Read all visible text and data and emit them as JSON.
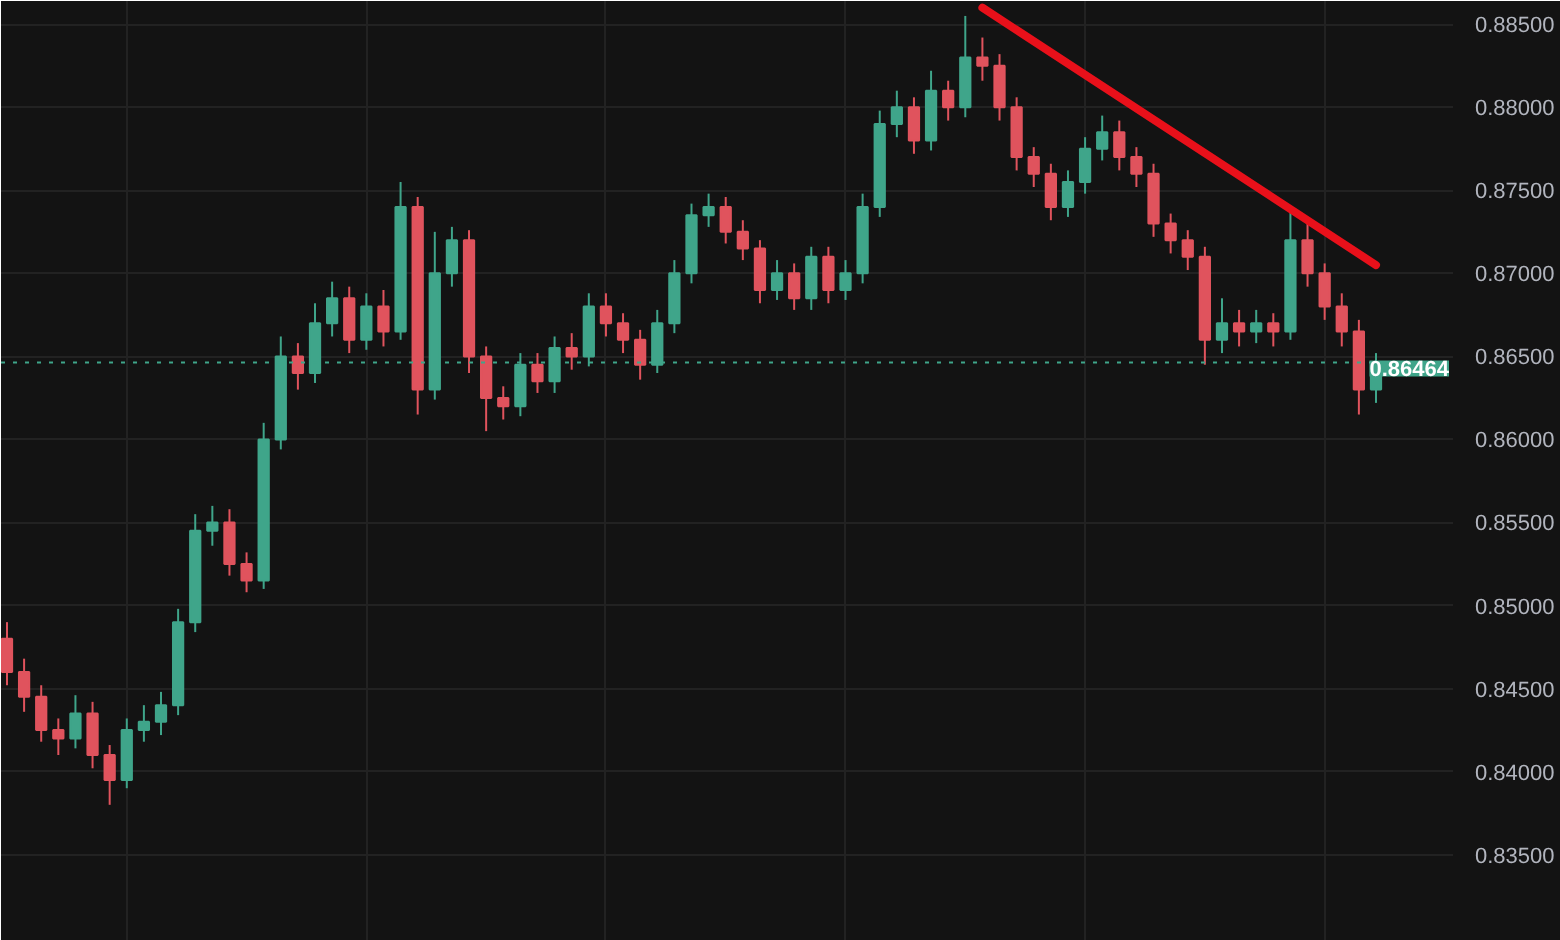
{
  "chart_data": {
    "type": "candlestick",
    "categories": [
      null,
      null,
      null,
      null,
      null,
      null,
      null,
      null,
      null,
      null,
      null,
      null,
      null,
      null,
      null,
      null,
      null,
      null,
      null,
      null,
      null,
      null,
      null,
      null,
      null,
      null,
      null,
      null,
      null,
      null,
      null,
      null,
      null,
      null,
      null,
      null,
      null,
      null,
      null,
      null,
      null,
      null,
      null,
      null,
      null,
      null,
      null,
      null,
      null,
      null,
      null,
      null,
      null,
      null,
      null,
      null,
      null,
      null,
      null,
      null,
      null,
      null,
      null,
      null,
      null,
      null,
      null,
      null,
      null,
      null,
      null,
      null,
      null,
      null,
      null,
      null,
      null,
      null,
      null,
      null,
      null
    ],
    "ohlc": [
      [
        0.848,
        0.849,
        0.8452,
        0.846
      ],
      [
        0.846,
        0.8468,
        0.8436,
        0.8445
      ],
      [
        0.8445,
        0.8452,
        0.8418,
        0.8425
      ],
      [
        0.8425,
        0.8432,
        0.841,
        0.842
      ],
      [
        0.842,
        0.8446,
        0.8414,
        0.8435
      ],
      [
        0.8435,
        0.8442,
        0.8402,
        0.841
      ],
      [
        0.841,
        0.8416,
        0.838,
        0.8395
      ],
      [
        0.8395,
        0.8432,
        0.839,
        0.8425
      ],
      [
        0.8425,
        0.844,
        0.8418,
        0.843
      ],
      [
        0.843,
        0.8448,
        0.8422,
        0.844
      ],
      [
        0.844,
        0.8498,
        0.8434,
        0.849
      ],
      [
        0.849,
        0.8555,
        0.8484,
        0.8545
      ],
      [
        0.8545,
        0.856,
        0.8536,
        0.855
      ],
      [
        0.855,
        0.8558,
        0.8518,
        0.8525
      ],
      [
        0.8525,
        0.8532,
        0.8508,
        0.8515
      ],
      [
        0.8515,
        0.861,
        0.851,
        0.86
      ],
      [
        0.86,
        0.8662,
        0.8594,
        0.865
      ],
      [
        0.865,
        0.8658,
        0.863,
        0.864
      ],
      [
        0.864,
        0.8682,
        0.8634,
        0.867
      ],
      [
        0.867,
        0.8695,
        0.8662,
        0.8685
      ],
      [
        0.8685,
        0.8692,
        0.8652,
        0.866
      ],
      [
        0.866,
        0.8688,
        0.8654,
        0.868
      ],
      [
        0.868,
        0.869,
        0.8656,
        0.8665
      ],
      [
        0.8665,
        0.8755,
        0.866,
        0.874
      ],
      [
        0.874,
        0.8746,
        0.8615,
        0.863
      ],
      [
        0.863,
        0.8725,
        0.8624,
        0.87
      ],
      [
        0.87,
        0.8728,
        0.8692,
        0.872
      ],
      [
        0.872,
        0.8726,
        0.864,
        0.865
      ],
      [
        0.865,
        0.8656,
        0.8605,
        0.8625
      ],
      [
        0.8625,
        0.8632,
        0.8612,
        0.862
      ],
      [
        0.862,
        0.8652,
        0.8614,
        0.8645
      ],
      [
        0.8645,
        0.8652,
        0.8628,
        0.8635
      ],
      [
        0.8635,
        0.8662,
        0.8628,
        0.8655
      ],
      [
        0.8655,
        0.8664,
        0.8642,
        0.865
      ],
      [
        0.865,
        0.8688,
        0.8644,
        0.868
      ],
      [
        0.868,
        0.8688,
        0.8662,
        0.867
      ],
      [
        0.867,
        0.8676,
        0.8652,
        0.866
      ],
      [
        0.866,
        0.8666,
        0.8636,
        0.8645
      ],
      [
        0.8645,
        0.8678,
        0.864,
        0.867
      ],
      [
        0.867,
        0.8708,
        0.8664,
        0.87
      ],
      [
        0.87,
        0.8742,
        0.8694,
        0.8735
      ],
      [
        0.8735,
        0.8748,
        0.8728,
        0.874
      ],
      [
        0.874,
        0.8746,
        0.8718,
        0.8725
      ],
      [
        0.8725,
        0.8732,
        0.8708,
        0.8715
      ],
      [
        0.8715,
        0.872,
        0.8682,
        0.869
      ],
      [
        0.869,
        0.8708,
        0.8684,
        0.87
      ],
      [
        0.87,
        0.8706,
        0.8678,
        0.8685
      ],
      [
        0.8685,
        0.8716,
        0.8678,
        0.871
      ],
      [
        0.871,
        0.8716,
        0.8682,
        0.869
      ],
      [
        0.869,
        0.8708,
        0.8684,
        0.87
      ],
      [
        0.87,
        0.8748,
        0.8694,
        0.874
      ],
      [
        0.874,
        0.8798,
        0.8734,
        0.879
      ],
      [
        0.879,
        0.881,
        0.8782,
        0.88
      ],
      [
        0.88,
        0.8806,
        0.8772,
        0.878
      ],
      [
        0.878,
        0.8822,
        0.8774,
        0.881
      ],
      [
        0.881,
        0.8816,
        0.8792,
        0.88
      ],
      [
        0.88,
        0.8855,
        0.8794,
        0.883
      ],
      [
        0.883,
        0.8842,
        0.8816,
        0.8825
      ],
      [
        0.8825,
        0.8832,
        0.8792,
        0.88
      ],
      [
        0.88,
        0.8806,
        0.8762,
        0.877
      ],
      [
        0.877,
        0.8776,
        0.8752,
        0.876
      ],
      [
        0.876,
        0.8766,
        0.8732,
        0.874
      ],
      [
        0.874,
        0.8762,
        0.8734,
        0.8755
      ],
      [
        0.8755,
        0.8782,
        0.8748,
        0.8775
      ],
      [
        0.8775,
        0.8795,
        0.8768,
        0.8785
      ],
      [
        0.8785,
        0.8792,
        0.8762,
        0.877
      ],
      [
        0.877,
        0.8776,
        0.8752,
        0.876
      ],
      [
        0.876,
        0.8766,
        0.8722,
        0.873
      ],
      [
        0.873,
        0.8736,
        0.8712,
        0.872
      ],
      [
        0.872,
        0.8726,
        0.8702,
        0.871
      ],
      [
        0.871,
        0.8716,
        0.8645,
        0.866
      ],
      [
        0.866,
        0.8685,
        0.8652,
        0.867
      ],
      [
        0.867,
        0.8678,
        0.8656,
        0.8665
      ],
      [
        0.8665,
        0.8678,
        0.8658,
        0.867
      ],
      [
        0.867,
        0.8676,
        0.8656,
        0.8665
      ],
      [
        0.8665,
        0.8738,
        0.866,
        0.872
      ],
      [
        0.872,
        0.873,
        0.8692,
        0.87
      ],
      [
        0.87,
        0.8706,
        0.8672,
        0.868
      ],
      [
        0.868,
        0.8688,
        0.8656,
        0.8665
      ],
      [
        0.8665,
        0.8672,
        0.8615,
        0.863
      ],
      [
        0.863,
        0.8652,
        0.8622,
        0.8646
      ]
    ],
    "colors": [
      "#e0535d",
      "#e0535d",
      "#e0535d",
      "#e0535d",
      "#3fa58a",
      "#e0535d",
      "#e0535d",
      "#3fa58a",
      "#3fa58a",
      "#3fa58a",
      "#3fa58a",
      "#3fa58a",
      "#3fa58a",
      "#e0535d",
      "#e0535d",
      "#3fa58a",
      "#3fa58a",
      "#e0535d",
      "#3fa58a",
      "#3fa58a",
      "#e0535d",
      "#3fa58a",
      "#e0535d",
      "#3fa58a",
      "#e0535d",
      "#3fa58a",
      "#3fa58a",
      "#e0535d",
      "#e0535d",
      "#e0535d",
      "#3fa58a",
      "#e0535d",
      "#3fa58a",
      "#e0535d",
      "#3fa58a",
      "#e0535d",
      "#e0535d",
      "#e0535d",
      "#3fa58a",
      "#3fa58a",
      "#3fa58a",
      "#3fa58a",
      "#e0535d",
      "#e0535d",
      "#e0535d",
      "#3fa58a",
      "#e0535d",
      "#3fa58a",
      "#e0535d",
      "#3fa58a",
      "#3fa58a",
      "#3fa58a",
      "#3fa58a",
      "#e0535d",
      "#3fa58a",
      "#e0535d",
      "#3fa58a",
      "#e0535d",
      "#e0535d",
      "#e0535d",
      "#e0535d",
      "#e0535d",
      "#3fa58a",
      "#3fa58a",
      "#3fa58a",
      "#e0535d",
      "#e0535d",
      "#e0535d",
      "#e0535d",
      "#e0535d",
      "#e0535d",
      "#3fa58a",
      "#e0535d",
      "#3fa58a",
      "#e0535d",
      "#3fa58a",
      "#e0535d",
      "#e0535d",
      "#e0535d",
      "#e0535d",
      "#3fa58a"
    ],
    "series": [
      {
        "type": "line",
        "color": "#e8101a",
        "values": [
          null,
          null,
          null,
          null,
          null,
          null,
          null,
          null,
          null,
          null,
          null,
          null,
          null,
          null,
          null,
          null,
          null,
          null,
          null,
          null,
          null,
          null,
          null,
          null,
          null,
          null,
          null,
          null,
          null,
          null,
          null,
          null,
          null,
          null,
          null,
          null,
          null,
          null,
          null,
          null,
          null,
          null,
          null,
          null,
          null,
          null,
          null,
          null,
          null,
          null,
          null,
          null,
          null,
          null,
          null,
          null,
          null,
          0.886,
          null,
          null,
          null,
          null,
          null,
          null,
          null,
          null,
          null,
          null,
          null,
          null,
          null,
          null,
          null,
          null,
          null,
          null,
          null,
          null,
          null,
          null,
          0.8705
        ]
      }
    ],
    "ylim": [
      0.8298,
      0.8864
    ],
    "yticks": [
      {
        "value": 0.835,
        "label": "0.83500"
      },
      {
        "value": 0.84,
        "label": "0.84000"
      },
      {
        "value": 0.845,
        "label": "0.84500"
      },
      {
        "value": 0.85,
        "label": "0.85000"
      },
      {
        "value": 0.855,
        "label": "0.85500"
      },
      {
        "value": 0.86,
        "label": "0.86000"
      },
      {
        "value": 0.865,
        "label": "0.86500"
      },
      {
        "value": 0.87,
        "label": "0.87000"
      },
      {
        "value": 0.875,
        "label": "0.87500"
      },
      {
        "value": 0.88,
        "label": "0.88000"
      },
      {
        "value": 0.885,
        "label": "0.88500"
      }
    ],
    "ref_lines": [
      {
        "axis": "y",
        "value": 0.86464,
        "label": "0.86464",
        "color": "#3fa58a",
        "line_style": "dotted"
      }
    ],
    "grid": true,
    "tick_labels": "y"
  }
}
